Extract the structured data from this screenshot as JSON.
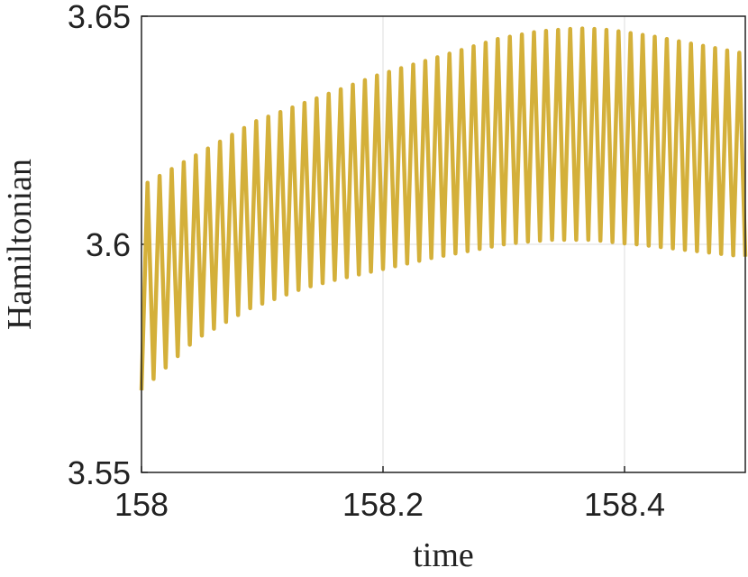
{
  "chart_data": {
    "type": "line",
    "xlabel": "time",
    "ylabel": "Hamiltonian",
    "x": [
      158,
      158.005,
      158.01,
      158.015,
      158.02,
      158.025,
      158.03,
      158.035,
      158.04,
      158.045,
      158.05,
      158.055,
      158.06,
      158.065,
      158.07,
      158.075,
      158.08,
      158.085,
      158.09,
      158.095,
      158.1,
      158.105,
      158.11,
      158.115,
      158.12,
      158.125,
      158.13,
      158.135,
      158.14,
      158.145,
      158.15,
      158.155,
      158.16,
      158.165,
      158.17,
      158.175,
      158.18,
      158.185,
      158.19,
      158.195,
      158.2,
      158.205,
      158.21,
      158.215,
      158.22,
      158.225,
      158.23,
      158.235,
      158.24,
      158.245,
      158.25,
      158.255,
      158.26,
      158.265,
      158.27,
      158.275,
      158.28,
      158.285,
      158.29,
      158.295,
      158.3,
      158.305,
      158.31,
      158.315,
      158.32,
      158.325,
      158.33,
      158.335,
      158.34,
      158.345,
      158.35,
      158.355,
      158.36,
      158.365,
      158.37,
      158.375,
      158.38,
      158.385,
      158.39,
      158.395,
      158.4,
      158.405,
      158.41,
      158.415,
      158.42,
      158.425,
      158.43,
      158.435,
      158.44,
      158.445,
      158.45,
      158.455,
      158.46,
      158.465,
      158.47,
      158.475,
      158.48,
      158.485,
      158.49,
      158.495,
      158.5
    ],
    "series": [
      {
        "color": "#d4b03a",
        "values": [
          3.568,
          3.6135,
          3.5705,
          3.615,
          3.573,
          3.6165,
          3.5755,
          3.618,
          3.578,
          3.6195,
          3.58,
          3.621,
          3.5815,
          3.6225,
          3.583,
          3.624,
          3.5845,
          3.6255,
          3.586,
          3.627,
          3.587,
          3.628,
          3.588,
          3.629,
          3.589,
          3.63,
          3.59,
          3.631,
          3.5908,
          3.632,
          3.5915,
          3.633,
          3.5922,
          3.634,
          3.5928,
          3.635,
          3.5934,
          3.636,
          3.594,
          3.637,
          3.5946,
          3.6378,
          3.5952,
          3.6386,
          3.5958,
          3.6394,
          3.5964,
          3.6402,
          3.597,
          3.641,
          3.5975,
          3.6418,
          3.598,
          3.6426,
          3.5985,
          3.6434,
          3.599,
          3.6442,
          3.5995,
          3.645,
          3.6,
          3.6455,
          3.6003,
          3.646,
          3.6006,
          3.6465,
          3.6008,
          3.6468,
          3.601,
          3.647,
          3.601,
          3.6472,
          3.601,
          3.6473,
          3.601,
          3.6472,
          3.6008,
          3.647,
          3.6005,
          3.6467,
          3.6002,
          3.6463,
          3.6,
          3.6459,
          3.5997,
          3.6455,
          3.5994,
          3.645,
          3.5991,
          3.6445,
          3.5988,
          3.644,
          3.5985,
          3.6435,
          3.5982,
          3.643,
          3.5979,
          3.6425,
          3.5976,
          3.642,
          3.5973
        ]
      }
    ],
    "xlim": [
      158,
      158.5
    ],
    "ylim": [
      3.55,
      3.65
    ],
    "xticks": [
      158,
      158.2,
      158.4
    ],
    "yticks": [
      3.55,
      3.6,
      3.65
    ],
    "grid": true
  }
}
